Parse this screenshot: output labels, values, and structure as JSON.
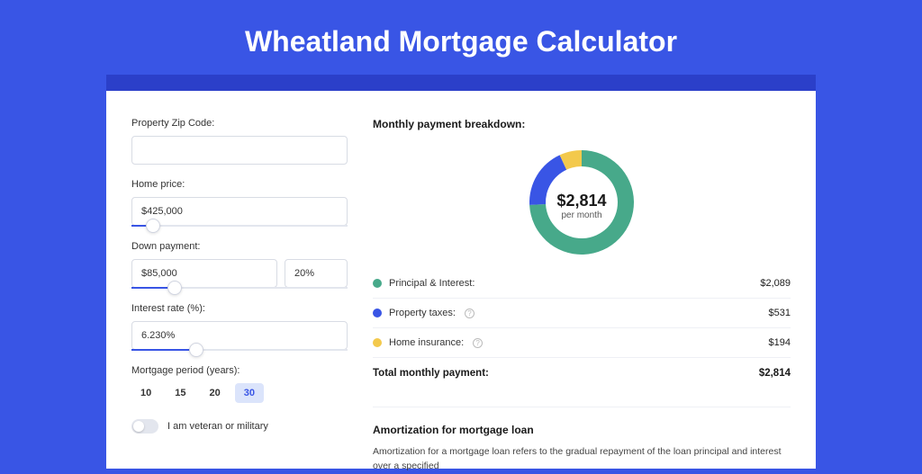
{
  "page": {
    "background_color": "#3955e5",
    "darkbar_color": "#2b3fc9",
    "card_background": "#ffffff",
    "title": "Wheatland Mortgage Calculator",
    "title_color": "#ffffff",
    "title_fontsize": 32
  },
  "form": {
    "zip": {
      "label": "Property Zip Code:",
      "value": ""
    },
    "home_price": {
      "label": "Home price:",
      "value": "$425,000",
      "slider_percent": 10
    },
    "down_payment": {
      "label": "Down payment:",
      "value": "$85,000",
      "percent_value": "20%",
      "slider_percent": 20
    },
    "interest_rate": {
      "label": "Interest rate (%):",
      "value": "6.230%",
      "slider_percent": 30
    },
    "period": {
      "label": "Mortgage period (years):",
      "options": [
        "10",
        "15",
        "20",
        "30"
      ],
      "selected_index": 3,
      "selected_bg": "#dbe4fb",
      "selected_color": "#3955e5"
    },
    "veteran": {
      "label": "I am veteran or military",
      "checked": false
    }
  },
  "breakdown": {
    "title": "Monthly payment breakdown:",
    "donut": {
      "type": "donut",
      "center_amount": "$2,814",
      "center_sub": "per month",
      "radius": 58,
      "inner_radius": 40,
      "slices": [
        {
          "label": "Principal & Interest",
          "value": 2089,
          "color": "#47a98a",
          "percent": 74.2
        },
        {
          "label": "Property taxes",
          "value": 531,
          "color": "#3955e5",
          "percent": 18.9
        },
        {
          "label": "Home insurance",
          "value": 194,
          "color": "#f3c94c",
          "percent": 6.9
        }
      ],
      "background": "#ffffff"
    },
    "legend": [
      {
        "dot_color": "#47a98a",
        "label": "Principal & Interest:",
        "has_info": false,
        "value": "$2,089"
      },
      {
        "dot_color": "#3955e5",
        "label": "Property taxes:",
        "has_info": true,
        "value": "$531"
      },
      {
        "dot_color": "#f3c94c",
        "label": "Home insurance:",
        "has_info": true,
        "value": "$194"
      }
    ],
    "total": {
      "label": "Total monthly payment:",
      "value": "$2,814"
    }
  },
  "amortization": {
    "title": "Amortization for mortgage loan",
    "text": "Amortization for a mortgage loan refers to the gradual repayment of the loan principal and interest over a specified"
  }
}
